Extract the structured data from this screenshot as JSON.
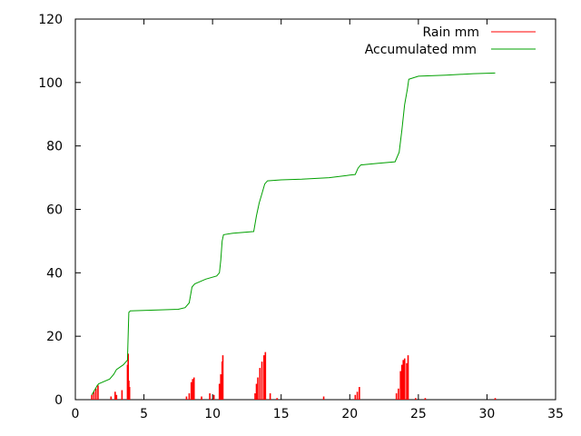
{
  "chart_data": {
    "type": "line",
    "title": "",
    "xlabel": "",
    "ylabel": "",
    "xlim": [
      0,
      35
    ],
    "ylim": [
      0,
      120
    ],
    "x_ticks": [
      0,
      5,
      10,
      15,
      20,
      25,
      30,
      35
    ],
    "y_ticks": [
      0,
      20,
      40,
      60,
      80,
      100,
      120
    ],
    "grid": false,
    "legend_position": "top-right",
    "series": [
      {
        "name": "Rain mm",
        "style": "impulses",
        "color": "#ff0000",
        "points": [
          [
            1.2,
            1.5
          ],
          [
            1.35,
            2.5
          ],
          [
            1.5,
            3.5
          ],
          [
            1.65,
            4.5
          ],
          [
            2.6,
            1.0
          ],
          [
            2.9,
            2.5
          ],
          [
            3.0,
            1.5
          ],
          [
            3.4,
            3.0
          ],
          [
            3.8,
            11.0
          ],
          [
            3.85,
            14.5
          ],
          [
            3.9,
            6.0
          ],
          [
            3.95,
            4.0
          ],
          [
            8.1,
            1.0
          ],
          [
            8.3,
            2.0
          ],
          [
            8.45,
            5.5
          ],
          [
            8.55,
            6.5
          ],
          [
            8.65,
            7.0
          ],
          [
            9.2,
            1.0
          ],
          [
            9.8,
            2.0
          ],
          [
            10.1,
            1.5
          ],
          [
            10.5,
            5.0
          ],
          [
            10.6,
            8.0
          ],
          [
            10.7,
            12.0
          ],
          [
            10.75,
            14.0
          ],
          [
            13.1,
            2.0
          ],
          [
            13.2,
            5.0
          ],
          [
            13.3,
            7.0
          ],
          [
            13.45,
            10.0
          ],
          [
            13.6,
            12.0
          ],
          [
            13.75,
            14.0
          ],
          [
            13.85,
            15.0
          ],
          [
            14.2,
            2.0
          ],
          [
            14.7,
            0.5
          ],
          [
            18.1,
            1.0
          ],
          [
            20.4,
            1.5
          ],
          [
            20.55,
            2.5
          ],
          [
            20.7,
            4.0
          ],
          [
            23.4,
            2.0
          ],
          [
            23.55,
            3.5
          ],
          [
            23.7,
            9.0
          ],
          [
            23.8,
            11.0
          ],
          [
            23.9,
            12.5
          ],
          [
            24.0,
            13.0
          ],
          [
            24.15,
            11.5
          ],
          [
            24.25,
            14.0
          ],
          [
            24.8,
            0.5
          ],
          [
            25.5,
            0.5
          ],
          [
            30.6,
            0.5
          ]
        ]
      },
      {
        "name": "Accumulated mm",
        "style": "line",
        "color": "#00a000",
        "points": [
          [
            1.2,
            1.5
          ],
          [
            1.4,
            3.0
          ],
          [
            1.6,
            4.5
          ],
          [
            1.7,
            5.0
          ],
          [
            2.5,
            6.5
          ],
          [
            2.8,
            8.0
          ],
          [
            3.0,
            9.5
          ],
          [
            3.5,
            11.0
          ],
          [
            3.8,
            12.5
          ],
          [
            3.9,
            27.5
          ],
          [
            4.0,
            28.0
          ],
          [
            7.5,
            28.5
          ],
          [
            8.0,
            29.0
          ],
          [
            8.3,
            30.5
          ],
          [
            8.5,
            35.5
          ],
          [
            8.7,
            36.5
          ],
          [
            9.5,
            38.0
          ],
          [
            10.3,
            39.0
          ],
          [
            10.5,
            40.0
          ],
          [
            10.6,
            44.0
          ],
          [
            10.7,
            50.0
          ],
          [
            10.8,
            52.0
          ],
          [
            11.5,
            52.5
          ],
          [
            13.0,
            53.0
          ],
          [
            13.2,
            58.0
          ],
          [
            13.4,
            62.0
          ],
          [
            13.6,
            65.0
          ],
          [
            13.8,
            68.0
          ],
          [
            14.0,
            69.0
          ],
          [
            15.0,
            69.3
          ],
          [
            16.5,
            69.5
          ],
          [
            18.5,
            70.0
          ],
          [
            20.0,
            70.8
          ],
          [
            20.4,
            71.0
          ],
          [
            20.6,
            73.0
          ],
          [
            20.8,
            74.0
          ],
          [
            22.0,
            74.5
          ],
          [
            23.3,
            75.0
          ],
          [
            23.6,
            78.0
          ],
          [
            23.8,
            85.0
          ],
          [
            24.0,
            93.0
          ],
          [
            24.2,
            98.0
          ],
          [
            24.3,
            101.0
          ],
          [
            25.0,
            102.0
          ],
          [
            27.0,
            102.3
          ],
          [
            29.0,
            102.8
          ],
          [
            30.6,
            103.0
          ]
        ]
      }
    ]
  }
}
